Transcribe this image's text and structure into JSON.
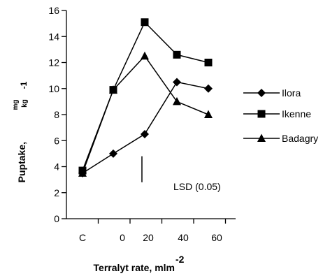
{
  "chart_data": {
    "type": "line",
    "x_categories": [
      "C",
      "0",
      "",
      "20",
      "40",
      "60"
    ],
    "ylim": [
      0,
      16
    ],
    "y_ticks": [
      "0",
      "2",
      "4",
      "6",
      "8",
      "10",
      "12",
      "14",
      "16"
    ],
    "xlabel": "Terralyt rate, mlm",
    "xlabel_sup": "-2",
    "ylabel": "Puptake,",
    "ylabel_unit_num": "mg",
    "ylabel_unit_den": "kg",
    "ylabel_unit_exp": "-1",
    "grid": false,
    "legend_position": "right",
    "series": [
      {
        "name": "Ilora",
        "marker": "diamond",
        "values": [
          3.5,
          5.0,
          6.5,
          10.5,
          10.0
        ]
      },
      {
        "name": "Ikenne",
        "marker": "square",
        "values": [
          3.7,
          9.9,
          15.1,
          12.6,
          12.0
        ]
      },
      {
        "name": "Badagry",
        "marker": "triangle",
        "values": [
          3.5,
          9.9,
          12.5,
          9.0,
          8.0
        ]
      }
    ],
    "series_x_positions": [
      0,
      1.75,
      2.8,
      4.2,
      5.3
    ],
    "annotation": {
      "text": "LSD (0.05)",
      "y_from": 2.8,
      "y_to": 4.8,
      "x_position": 2.9
    }
  }
}
